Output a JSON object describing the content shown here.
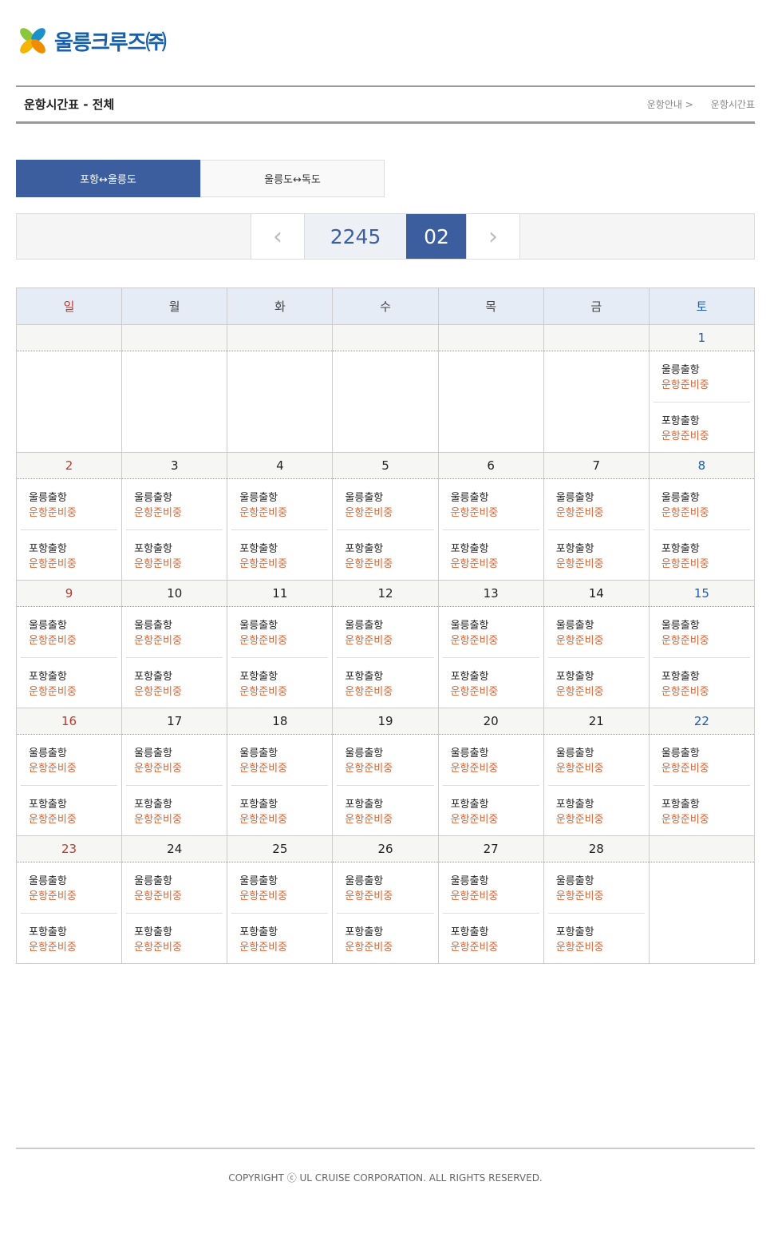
{
  "logo": {
    "text": "울릉크루즈㈜"
  },
  "header": {
    "title": "운항시간표 - 전체",
    "breadcrumb": [
      "운항안내 >",
      "운항시간표"
    ]
  },
  "tabs": [
    {
      "label": "포항↔울릉도",
      "active": true
    },
    {
      "label": "울릉도↔독도",
      "active": false
    }
  ],
  "nav": {
    "prev": "‹",
    "year": "2245",
    "month": "02",
    "next": "›"
  },
  "colors": {
    "primary": "#3d5e9e",
    "sunday": "#c0392b",
    "saturday": "#1a5fb4",
    "status": "#e0632e"
  },
  "weekdays": [
    "일",
    "월",
    "화",
    "수",
    "목",
    "금",
    "토"
  ],
  "trip_labels": [
    "울릉출항",
    "포항출항"
  ],
  "status": "운항준비중",
  "weeks": [
    [
      null,
      null,
      null,
      null,
      null,
      null,
      "1"
    ],
    [
      "2",
      "3",
      "4",
      "5",
      "6",
      "7",
      "8"
    ],
    [
      "9",
      "10",
      "11",
      "12",
      "13",
      "14",
      "15"
    ],
    [
      "16",
      "17",
      "18",
      "19",
      "20",
      "21",
      "22"
    ],
    [
      "23",
      "24",
      "25",
      "26",
      "27",
      "28",
      null
    ]
  ],
  "footer": "COPYRIGHT ⓒ UL CRUISE CORPORATION. ALL RIGHTS RESERVED."
}
